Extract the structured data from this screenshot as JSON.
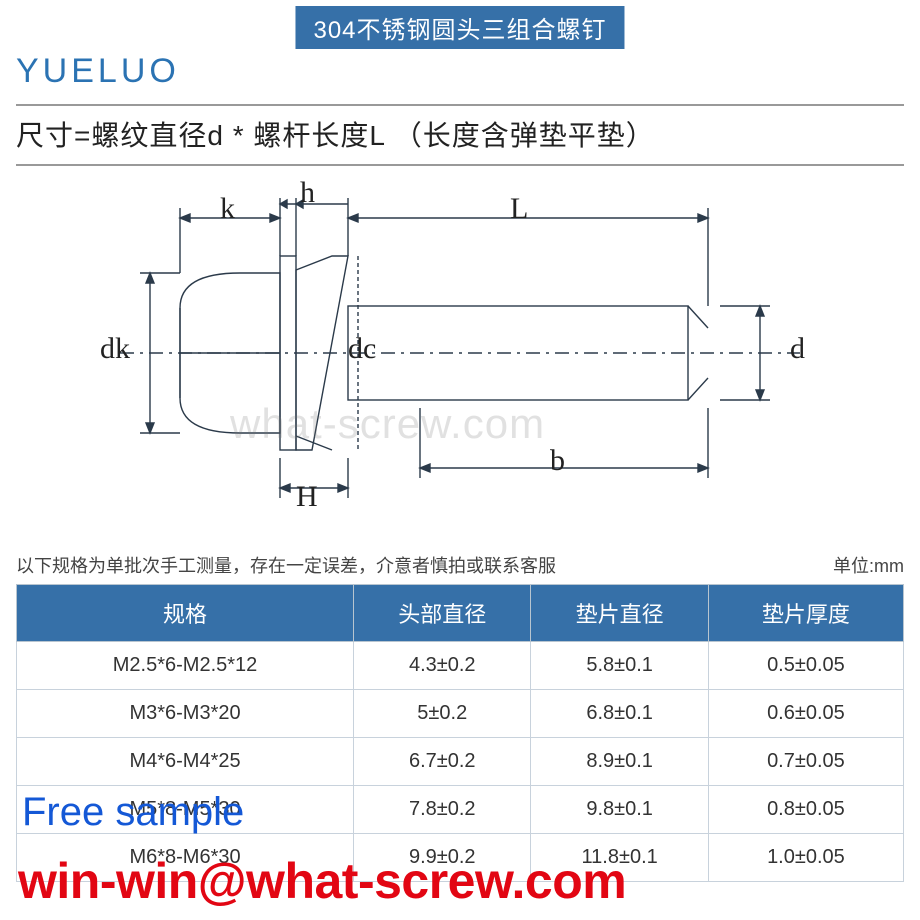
{
  "title": "304不锈钢圆头三组合螺钉",
  "brand": "YUELUO",
  "size_formula": "尺寸=螺纹直径d * 螺杆长度L （长度含弹垫平垫）",
  "diagram": {
    "labels": {
      "k": "k",
      "h": "h",
      "L": "L",
      "dk": "dk",
      "dc": "dc",
      "d": "d",
      "b": "b",
      "H": "H"
    },
    "line_color": "#2b3a4a",
    "line_width": 1.2
  },
  "watermark": "what-screw.com",
  "note": "以下规格为单批次手工测量，存在一定误差，介意者慎拍或联系客服",
  "unit": "单位:mm",
  "table": {
    "header_bg": "#3670a8",
    "header_color": "#ffffff",
    "border_color": "#c8d2dc",
    "columns": [
      "规格",
      "头部直径",
      "垫片直径",
      "垫片厚度"
    ],
    "rows": [
      [
        "M2.5*6-M2.5*12",
        "4.3±0.2",
        "5.8±0.1",
        "0.5±0.05"
      ],
      [
        "M3*6-M3*20",
        "5±0.2",
        "6.8±0.1",
        "0.6±0.05"
      ],
      [
        "M4*6-M4*25",
        "6.7±0.2",
        "8.9±0.1",
        "0.7±0.05"
      ],
      [
        "M5*8-M5*30",
        "7.8±0.2",
        "9.8±0.1",
        "0.8±0.05"
      ],
      [
        "M6*8-M6*30",
        "9.9±0.2",
        "11.8±0.1",
        "1.0±0.05"
      ]
    ]
  },
  "overlay": {
    "free_sample": "Free sample",
    "email": "win-win@what-screw.com",
    "free_color": "#1458d6",
    "email_color": "#e20613"
  }
}
